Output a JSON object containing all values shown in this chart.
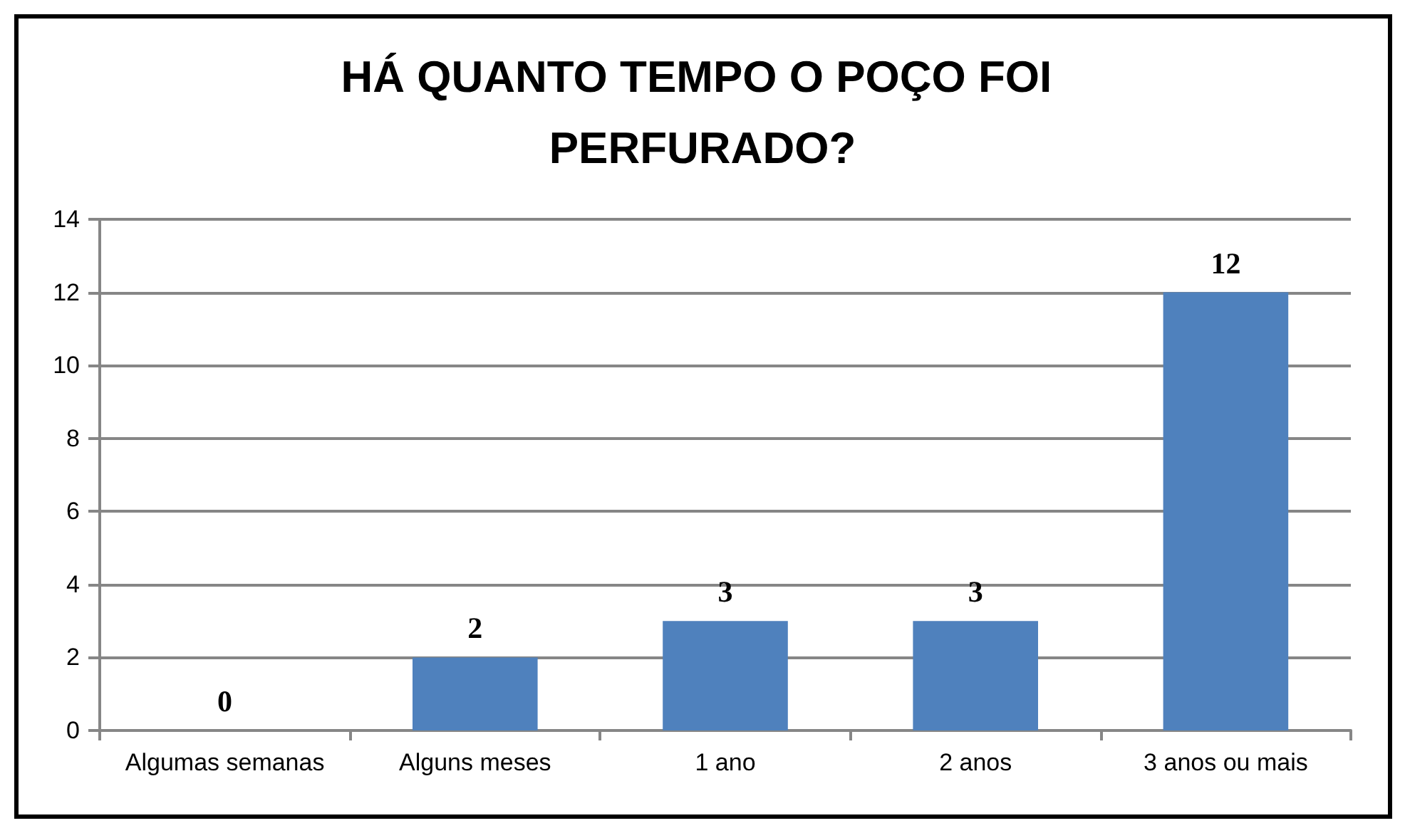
{
  "chart_data": {
    "type": "bar",
    "title": "HÁ QUANTO TEMPO O POÇO FOI PERFURADO?",
    "categories": [
      "Algumas semanas",
      "Alguns meses",
      "1 ano",
      "2 anos",
      "3 anos ou mais"
    ],
    "values": [
      0,
      2,
      3,
      3,
      12
    ],
    "color": "#4f81bd",
    "ylim": [
      0,
      14
    ],
    "yticks": [
      0,
      2,
      4,
      6,
      8,
      10,
      12,
      14
    ],
    "grid": true,
    "data_labels": true
  }
}
